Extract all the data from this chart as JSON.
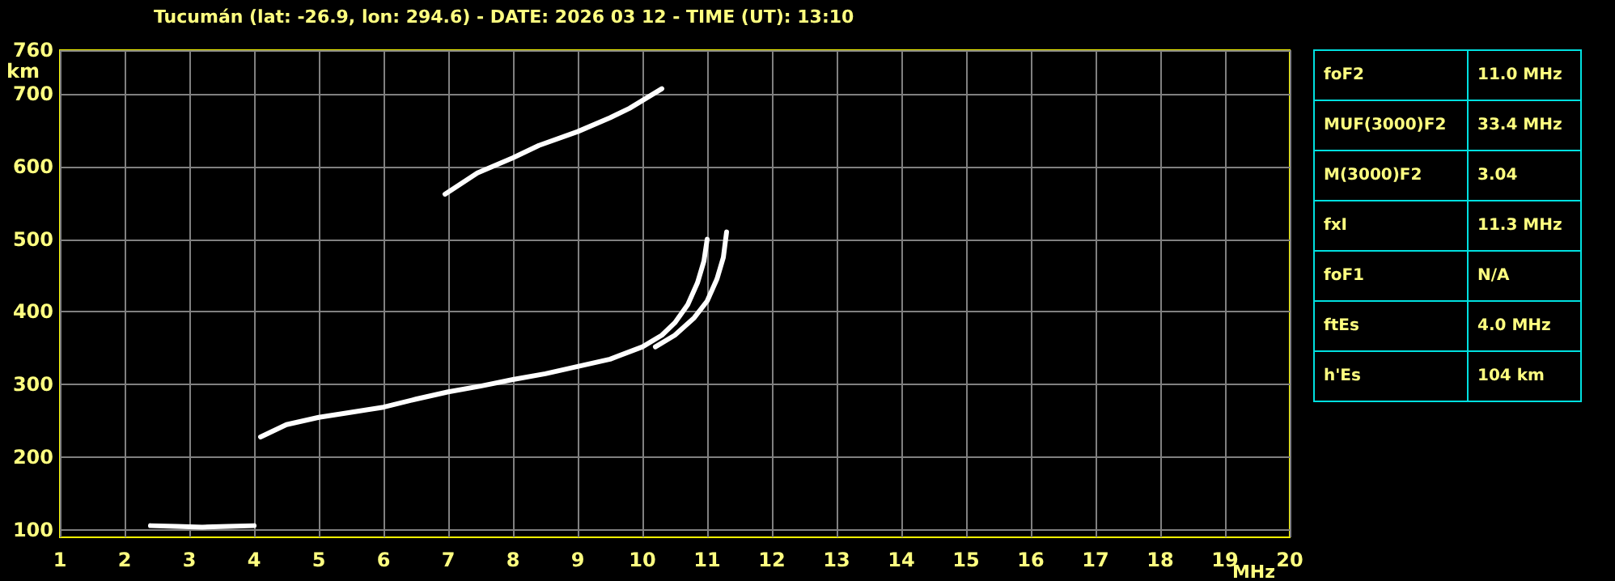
{
  "chart_data": {
    "type": "line",
    "title": "Tucumán (lat: -26.9, lon: 294.6) - DATE: 2026 03 12 - TIME (UT): 13:10",
    "xlabel": "MHz",
    "ylabel": "km",
    "xlim": [
      1,
      20
    ],
    "ylim": [
      90,
      760
    ],
    "xticks": [
      1,
      2,
      3,
      4,
      5,
      6,
      7,
      8,
      9,
      10,
      11,
      12,
      13,
      14,
      15,
      16,
      17,
      18,
      19,
      20
    ],
    "yticks": [
      100,
      200,
      300,
      400,
      500,
      600,
      700,
      760
    ],
    "grid": true,
    "marker": "none",
    "line_style": "solid",
    "series": [
      {
        "color": "#ffffff",
        "x": [
          2.4,
          2.8,
          3.2,
          3.6,
          4.0
        ],
        "values": [
          106,
          105,
          104,
          105,
          106
        ]
      },
      {
        "color": "#ffffff",
        "x": [
          4.1,
          4.5,
          5,
          5.5,
          6,
          6.5,
          7,
          7.5,
          8,
          8.5,
          9,
          9.5,
          10,
          10.3,
          10.5,
          10.7,
          10.85,
          10.95,
          11.0
        ],
        "values": [
          228,
          245,
          255,
          262,
          269,
          280,
          290,
          298,
          307,
          315,
          325,
          335,
          352,
          368,
          385,
          410,
          440,
          470,
          500
        ]
      },
      {
        "color": "#ffffff",
        "x": [
          10.2,
          10.5,
          10.8,
          11.0,
          11.15,
          11.25,
          11.3
        ],
        "values": [
          352,
          368,
          392,
          415,
          445,
          475,
          510
        ]
      },
      {
        "color": "#ffffff",
        "x": [
          6.95,
          7.45,
          8.0,
          8.4,
          9.0,
          9.5,
          9.8,
          10.3
        ],
        "values": [
          562,
          591,
          612,
          629,
          648,
          667,
          680,
          707
        ]
      }
    ],
    "annotations": [
      "foF2",
      "11.0 MHz",
      "MUF(3000)F2",
      "33.4 MHz",
      "M(3000)F2",
      "3.04",
      "fxI",
      "11.3 MHz",
      "foF1",
      "N/A",
      "ftEs",
      "4.0 MHz",
      "h'Es",
      "104 km"
    ]
  }
}
